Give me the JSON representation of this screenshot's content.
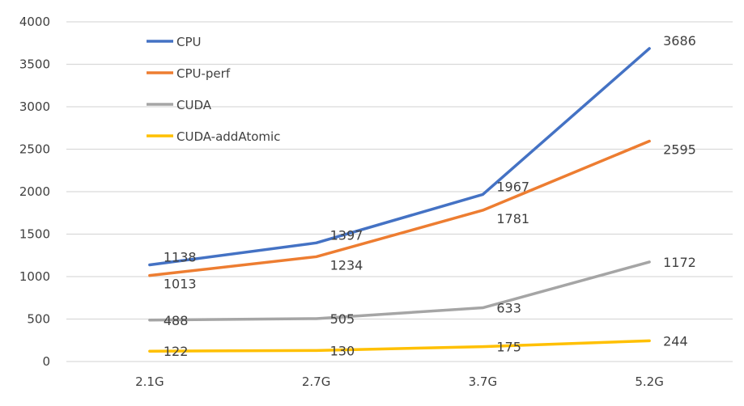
{
  "chart_data": {
    "type": "line",
    "title": "",
    "xlabel": "",
    "ylabel": "",
    "categories": [
      "2.1G",
      "2.7G",
      "3.7G",
      "5.2G"
    ],
    "ylim": [
      0,
      4000
    ],
    "yticks": [
      0,
      500,
      1000,
      1500,
      2000,
      2500,
      3000,
      3500,
      4000
    ],
    "grid": true,
    "legend_position": "top-left",
    "series": [
      {
        "name": "CPU",
        "color": "#4472C4",
        "values": [
          1138,
          1397,
          1967,
          3686
        ]
      },
      {
        "name": "CPU-perf",
        "color": "#ED7D31",
        "values": [
          1013,
          1234,
          1781,
          2595
        ]
      },
      {
        "name": "CUDA",
        "color": "#A5A5A5",
        "values": [
          488,
          505,
          633,
          1172
        ]
      },
      {
        "name": "CUDA-addAtomic",
        "color": "#FFC000",
        "values": [
          122,
          130,
          175,
          244
        ]
      }
    ]
  }
}
